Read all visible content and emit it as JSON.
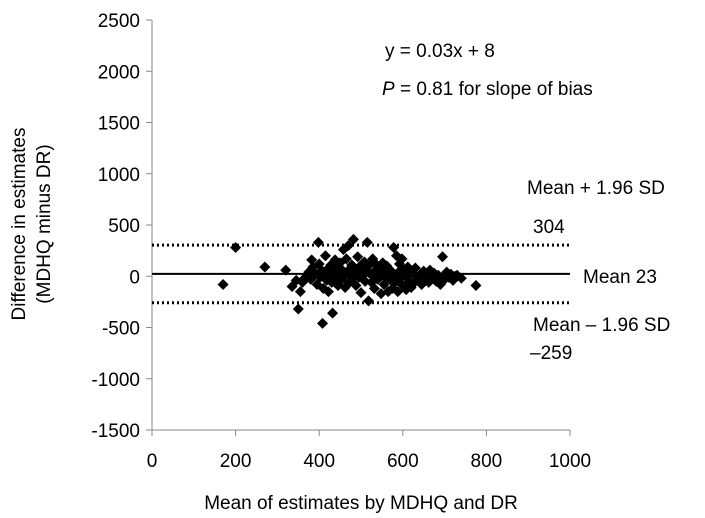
{
  "chart_data": {
    "type": "scatter",
    "title": "",
    "xlabel": "Mean of estimates by MDHQ and DR",
    "ylabel_line1": "Difference in estimates",
    "ylabel_line2": "(MDHQ minus DR)",
    "xlim": [
      0,
      1000
    ],
    "ylim": [
      -1500,
      2500
    ],
    "x_ticks": [
      0,
      200,
      400,
      600,
      800,
      1000
    ],
    "y_ticks": [
      2500,
      2000,
      1500,
      1000,
      500,
      0,
      -500,
      -1000,
      -1500
    ],
    "x_tick_labels": [
      "0",
      "200",
      "400",
      "600",
      "800",
      "1000"
    ],
    "y_tick_labels": [
      "2500",
      "2000",
      "1500",
      "1000",
      "500",
      "0",
      "-500",
      "-1000",
      "-1500"
    ],
    "grid": false,
    "marker": "diamond",
    "reference_lines": [
      {
        "name": "Mean",
        "value": 23,
        "style": "solid"
      },
      {
        "name": "Mean + 1.96 SD",
        "value": 304,
        "style": "dotted"
      },
      {
        "name": "Mean – 1.96 SD",
        "value": -259,
        "style": "dotted"
      }
    ],
    "annotations": {
      "equation": "y = 0.03x + 8",
      "p_label": "P",
      "p_text": " = 0.81 for slope of bias",
      "upper_label": "Mean + 1.96 SD",
      "upper_value": "304",
      "mean_label": "Mean 23",
      "lower_label": "Mean – 1.96 SD",
      "lower_value": "–259"
    },
    "points": [
      [
        170,
        -80
      ],
      [
        200,
        280
      ],
      [
        270,
        90
      ],
      [
        320,
        60
      ],
      [
        335,
        -100
      ],
      [
        345,
        -40
      ],
      [
        350,
        -320
      ],
      [
        355,
        -150
      ],
      [
        360,
        -60
      ],
      [
        365,
        -20
      ],
      [
        370,
        0
      ],
      [
        375,
        40
      ],
      [
        380,
        -30
      ],
      [
        382,
        160
      ],
      [
        385,
        90
      ],
      [
        390,
        20
      ],
      [
        395,
        -80
      ],
      [
        398,
        330
      ],
      [
        400,
        120
      ],
      [
        402,
        -10
      ],
      [
        405,
        60
      ],
      [
        408,
        -460
      ],
      [
        410,
        -120
      ],
      [
        412,
        30
      ],
      [
        415,
        200
      ],
      [
        418,
        -40
      ],
      [
        420,
        70
      ],
      [
        422,
        -150
      ],
      [
        425,
        10
      ],
      [
        428,
        110
      ],
      [
        430,
        -60
      ],
      [
        432,
        -360
      ],
      [
        435,
        40
      ],
      [
        438,
        160
      ],
      [
        440,
        -20
      ],
      [
        442,
        90
      ],
      [
        445,
        -90
      ],
      [
        448,
        20
      ],
      [
        450,
        130
      ],
      [
        452,
        -40
      ],
      [
        455,
        60
      ],
      [
        458,
        260
      ],
      [
        460,
        0
      ],
      [
        462,
        -110
      ],
      [
        465,
        170
      ],
      [
        468,
        50
      ],
      [
        470,
        300
      ],
      [
        472,
        -60
      ],
      [
        475,
        30
      ],
      [
        478,
        110
      ],
      [
        480,
        -20
      ],
      [
        482,
        360
      ],
      [
        485,
        80
      ],
      [
        488,
        -90
      ],
      [
        490,
        20
      ],
      [
        492,
        190
      ],
      [
        495,
        -10
      ],
      [
        498,
        100
      ],
      [
        500,
        -160
      ],
      [
        502,
        50
      ],
      [
        505,
        10
      ],
      [
        508,
        140
      ],
      [
        510,
        -50
      ],
      [
        512,
        90
      ],
      [
        515,
        330
      ],
      [
        518,
        -240
      ],
      [
        520,
        30
      ],
      [
        522,
        120
      ],
      [
        525,
        -60
      ],
      [
        528,
        170
      ],
      [
        530,
        0
      ],
      [
        532,
        -120
      ],
      [
        535,
        60
      ],
      [
        538,
        110
      ],
      [
        540,
        -30
      ],
      [
        545,
        80
      ],
      [
        548,
        -170
      ],
      [
        550,
        20
      ],
      [
        552,
        130
      ],
      [
        555,
        -80
      ],
      [
        558,
        50
      ],
      [
        560,
        -10
      ],
      [
        562,
        100
      ],
      [
        565,
        -150
      ],
      [
        568,
        30
      ],
      [
        570,
        60
      ],
      [
        572,
        -40
      ],
      [
        575,
        -120
      ],
      [
        578,
        280
      ],
      [
        580,
        10
      ],
      [
        582,
        -60
      ],
      [
        585,
        200
      ],
      [
        588,
        -150
      ],
      [
        590,
        40
      ],
      [
        592,
        120
      ],
      [
        595,
        -20
      ],
      [
        598,
        170
      ],
      [
        600,
        -90
      ],
      [
        602,
        60
      ],
      [
        605,
        30
      ],
      [
        608,
        -130
      ],
      [
        610,
        0
      ],
      [
        612,
        90
      ],
      [
        615,
        -50
      ],
      [
        618,
        40
      ],
      [
        620,
        -110
      ],
      [
        625,
        20
      ],
      [
        628,
        -60
      ],
      [
        630,
        80
      ],
      [
        635,
        -20
      ],
      [
        640,
        10
      ],
      [
        645,
        -80
      ],
      [
        650,
        50
      ],
      [
        655,
        -30
      ],
      [
        660,
        20
      ],
      [
        662,
        -60
      ],
      [
        665,
        60
      ],
      [
        670,
        -10
      ],
      [
        675,
        30
      ],
      [
        680,
        -50
      ],
      [
        685,
        10
      ],
      [
        690,
        -80
      ],
      [
        695,
        190
      ],
      [
        700,
        -30
      ],
      [
        705,
        40
      ],
      [
        710,
        -10
      ],
      [
        715,
        20
      ],
      [
        720,
        -40
      ],
      [
        725,
        0
      ],
      [
        730,
        10
      ],
      [
        740,
        -20
      ],
      [
        775,
        -90
      ]
    ]
  }
}
